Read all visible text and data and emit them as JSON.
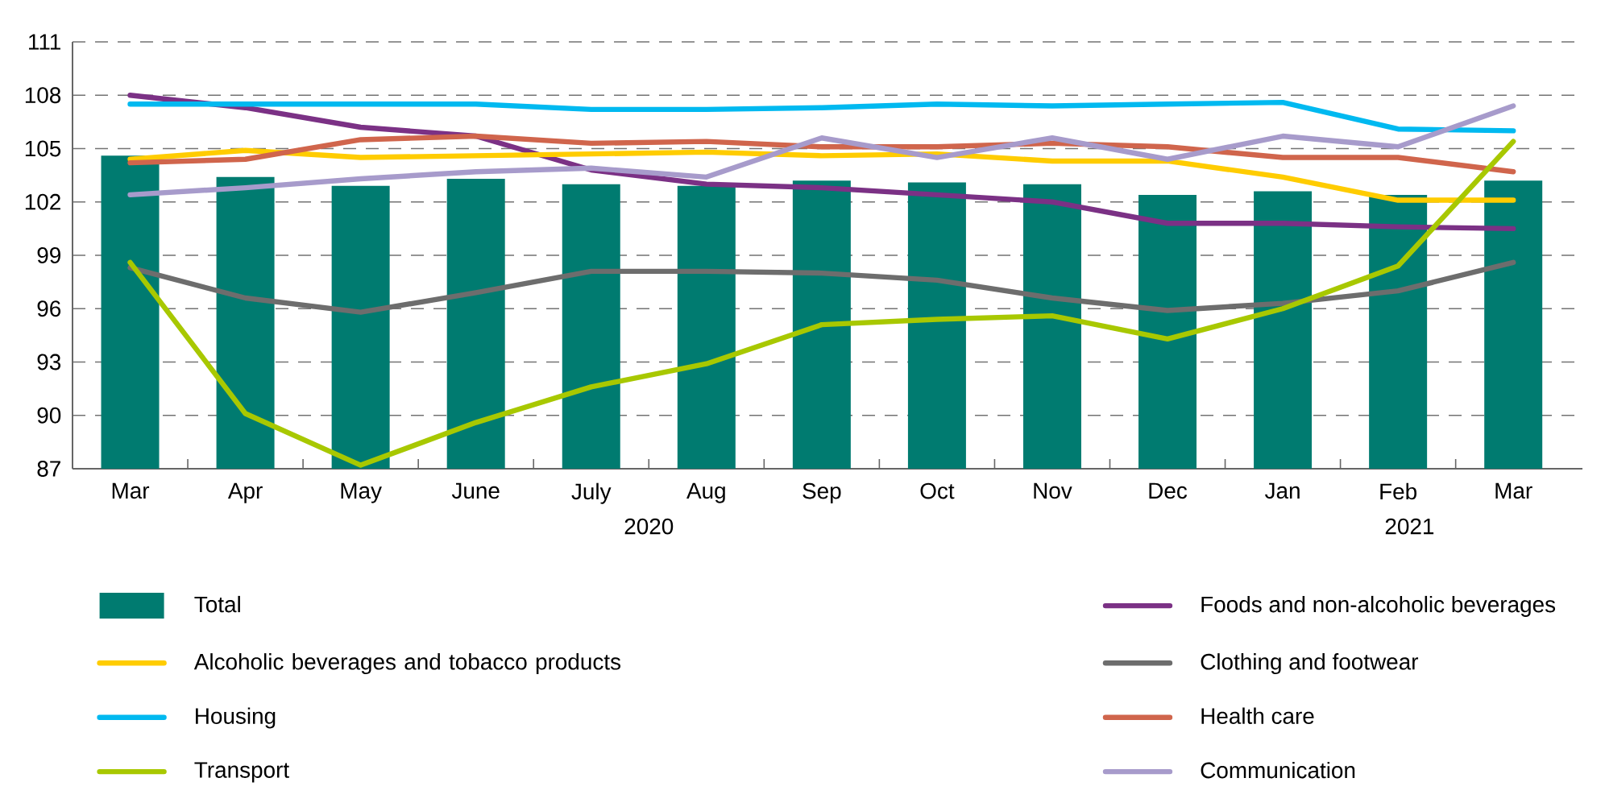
{
  "chart_data": {
    "type": "bar",
    "categories": [
      "Mar",
      "Apr",
      "May",
      "June",
      "July",
      "Aug",
      "Sep",
      "Oct",
      "Nov",
      "Dec",
      "Jan",
      "Feb",
      "Mar"
    ],
    "series": [
      {
        "name": "Total",
        "type": "bar",
        "color": "#007b70",
        "values": [
          104.6,
          103.4,
          102.9,
          103.3,
          103.0,
          102.9,
          103.2,
          103.1,
          103.0,
          102.4,
          102.6,
          102.4,
          103.2
        ]
      },
      {
        "name": "Foods and non-alcoholic beverages",
        "type": "line",
        "color": "#7b3185",
        "values": [
          108.0,
          107.3,
          106.2,
          105.7,
          103.8,
          103.0,
          102.8,
          102.4,
          102.0,
          100.8,
          100.8,
          100.6,
          100.5
        ]
      },
      {
        "name": "Alcoholic beverages and tobacco products",
        "type": "line",
        "color": "#ffcc00",
        "values": [
          104.4,
          104.9,
          104.5,
          104.6,
          104.7,
          104.8,
          104.6,
          104.7,
          104.3,
          104.3,
          103.4,
          102.1,
          102.1
        ]
      },
      {
        "name": "Clothing and footwear",
        "type": "line",
        "color": "#6d6d6d",
        "values": [
          98.3,
          96.6,
          95.8,
          96.9,
          98.1,
          98.1,
          98.0,
          97.6,
          96.6,
          95.9,
          96.3,
          97.0,
          98.6
        ]
      },
      {
        "name": "Housing",
        "type": "line",
        "color": "#00b9f0",
        "values": [
          107.5,
          107.5,
          107.5,
          107.5,
          107.2,
          107.2,
          107.3,
          107.5,
          107.4,
          107.5,
          107.6,
          106.1,
          106.0
        ]
      },
      {
        "name": "Health care",
        "type": "line",
        "color": "#d0654c",
        "values": [
          104.2,
          104.4,
          105.5,
          105.7,
          105.3,
          105.4,
          105.1,
          105.1,
          105.3,
          105.1,
          104.5,
          104.5,
          103.7
        ]
      },
      {
        "name": "Transport",
        "type": "line",
        "color": "#a8c800",
        "values": [
          98.6,
          90.1,
          87.2,
          89.6,
          91.6,
          92.9,
          95.1,
          95.4,
          95.6,
          94.3,
          96.0,
          98.4,
          105.4
        ]
      },
      {
        "name": "Communication",
        "type": "line",
        "color": "#a79bcb",
        "values": [
          102.4,
          102.8,
          103.3,
          103.7,
          103.9,
          103.4,
          105.6,
          104.5,
          105.6,
          104.4,
          105.7,
          105.1,
          107.4
        ]
      }
    ],
    "ylim": [
      87,
      111
    ],
    "yticks": [
      87,
      90,
      93,
      96,
      99,
      102,
      105,
      108,
      111
    ],
    "grid": "y",
    "legend": "bottom",
    "annotations": [
      "2020",
      "2021"
    ]
  }
}
